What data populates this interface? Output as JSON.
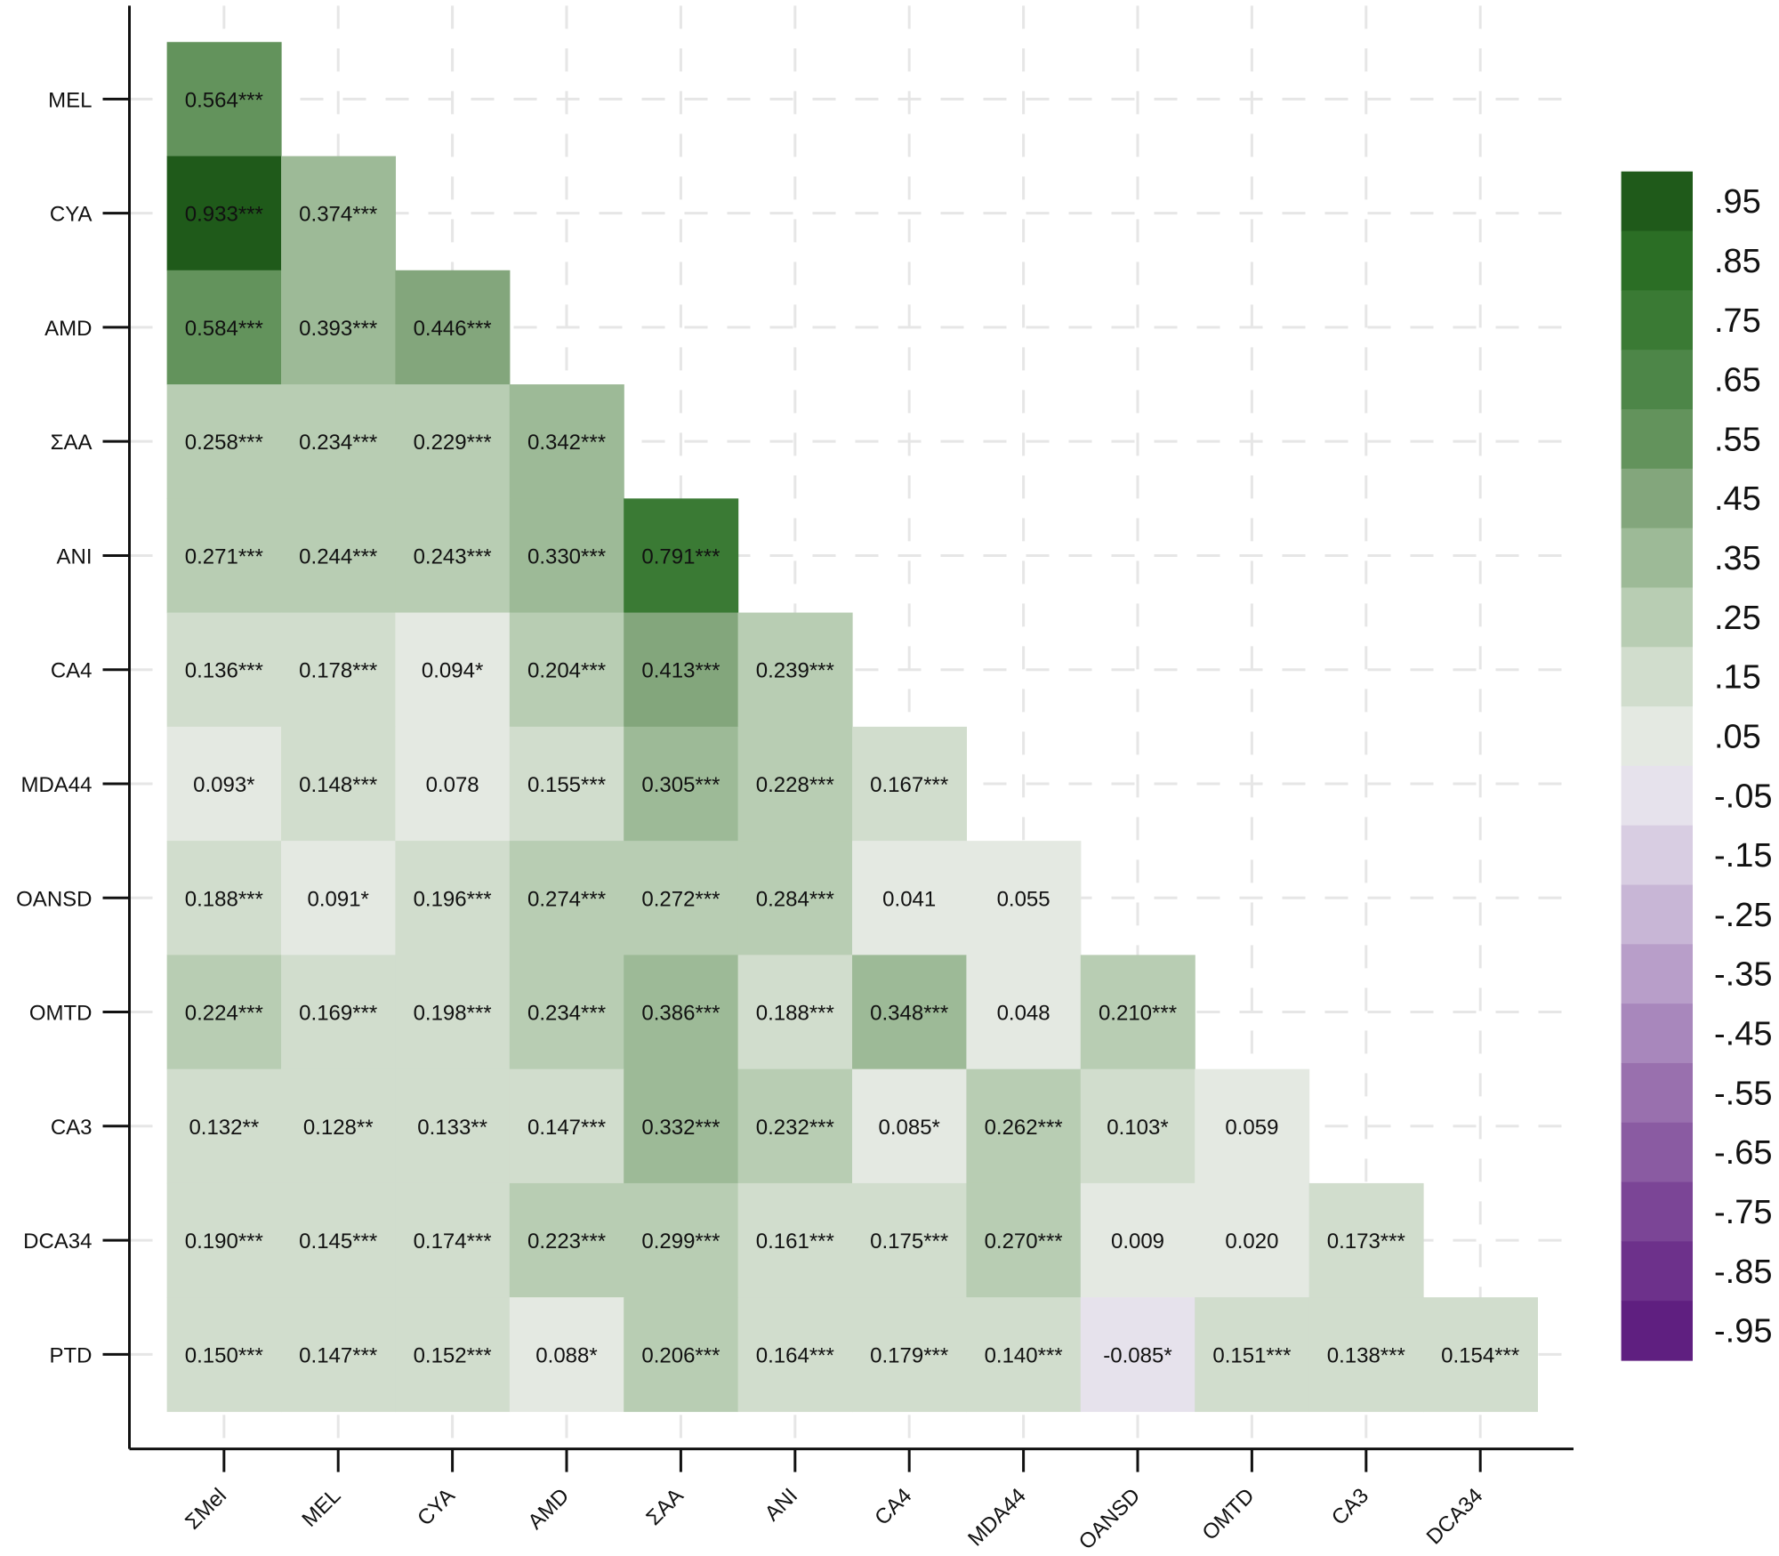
{
  "chart_data": {
    "type": "heatmap",
    "title": "",
    "xlabel": "",
    "ylabel": "",
    "x_categories": [
      "ΣMel",
      "MEL",
      "CYA",
      "AMD",
      "ΣAA",
      "ANI",
      "CA4",
      "MDA44",
      "OANSD",
      "OMTD",
      "CA3",
      "DCA34"
    ],
    "y_categories": [
      "MEL",
      "CYA",
      "AMD",
      "ΣAA",
      "ANI",
      "CA4",
      "MDA44",
      "OANSD",
      "OMTD",
      "CA3",
      "DCA34",
      "PTD"
    ],
    "values": [
      [
        0.564
      ],
      [
        0.933,
        0.374
      ],
      [
        0.584,
        0.393,
        0.446
      ],
      [
        0.258,
        0.234,
        0.229,
        0.342
      ],
      [
        0.271,
        0.244,
        0.243,
        0.33,
        0.791
      ],
      [
        0.136,
        0.178,
        0.094,
        0.204,
        0.413,
        0.239
      ],
      [
        0.093,
        0.148,
        0.078,
        0.155,
        0.305,
        0.228,
        0.167
      ],
      [
        0.188,
        0.091,
        0.196,
        0.274,
        0.272,
        0.284,
        0.041,
        0.055
      ],
      [
        0.224,
        0.169,
        0.198,
        0.234,
        0.386,
        0.188,
        0.348,
        0.048,
        0.21
      ],
      [
        0.132,
        0.128,
        0.133,
        0.147,
        0.332,
        0.232,
        0.085,
        0.262,
        0.103,
        0.059
      ],
      [
        0.19,
        0.145,
        0.174,
        0.223,
        0.299,
        0.161,
        0.175,
        0.27,
        0.009,
        0.02,
        0.173
      ],
      [
        0.15,
        0.147,
        0.152,
        0.088,
        0.206,
        0.164,
        0.179,
        0.14,
        -0.085,
        0.151,
        0.138,
        0.154
      ]
    ],
    "labels": [
      [
        "0.564***"
      ],
      [
        "0.933***",
        "0.374***"
      ],
      [
        "0.584***",
        "0.393***",
        "0.446***"
      ],
      [
        "0.258***",
        "0.234***",
        "0.229***",
        "0.342***"
      ],
      [
        "0.271***",
        "0.244***",
        "0.243***",
        "0.330***",
        "0.791***"
      ],
      [
        "0.136***",
        "0.178***",
        "0.094*",
        "0.204***",
        "0.413***",
        "0.239***"
      ],
      [
        "0.093*",
        "0.148***",
        "0.078",
        "0.155***",
        "0.305***",
        "0.228***",
        "0.167***"
      ],
      [
        "0.188***",
        "0.091*",
        "0.196***",
        "0.274***",
        "0.272***",
        "0.284***",
        "0.041",
        "0.055"
      ],
      [
        "0.224***",
        "0.169***",
        "0.198***",
        "0.234***",
        "0.386***",
        "0.188***",
        "0.348***",
        "0.048",
        "0.210***"
      ],
      [
        "0.132**",
        "0.128**",
        "0.133**",
        "0.147***",
        "0.332***",
        "0.232***",
        "0.085*",
        "0.262***",
        "0.103*",
        "0.059"
      ],
      [
        "0.190***",
        "0.145***",
        "0.174***",
        "0.223***",
        "0.299***",
        "0.161***",
        "0.175***",
        "0.270***",
        "0.009",
        "0.020",
        "0.173***"
      ],
      [
        "0.150***",
        "0.147***",
        "0.152***",
        "0.088*",
        "0.206***",
        "0.164***",
        "0.179***",
        "0.140***",
        "-0.085*",
        "0.151***",
        "0.138***",
        "0.154***"
      ]
    ],
    "colorbar": {
      "range": [
        -1,
        1
      ],
      "labels": [
        ".95",
        ".85",
        ".75",
        ".65",
        ".55",
        ".45",
        ".35",
        ".25",
        ".15",
        ".05",
        "-.05",
        "-.15",
        "-.25",
        "-.35",
        "-.45",
        "-.55",
        "-.65",
        "-.75",
        "-.85",
        "-.95"
      ],
      "bins": [
        {
          "label": ".95",
          "color": "#1f5a1a"
        },
        {
          "label": ".85",
          "color": "#2b6e25"
        },
        {
          "label": ".75",
          "color": "#3a7a34"
        },
        {
          "label": ".65",
          "color": "#4d8648"
        },
        {
          "label": ".55",
          "color": "#63935c"
        },
        {
          "label": ".45",
          "color": "#83a67c"
        },
        {
          "label": ".35",
          "color": "#9dba97"
        },
        {
          "label": ".25",
          "color": "#b8cdb3"
        },
        {
          "label": ".15",
          "color": "#d1ddcd"
        },
        {
          "label": ".05",
          "color": "#e4e9e2"
        },
        {
          "label": "-.05",
          "color": "#e6e2ec"
        },
        {
          "label": "-.15",
          "color": "#d8cde2"
        },
        {
          "label": "-.25",
          "color": "#c8b6d6"
        },
        {
          "label": "-.35",
          "color": "#b89ec9"
        },
        {
          "label": "-.45",
          "color": "#a887bc"
        },
        {
          "label": "-.55",
          "color": "#9970ae"
        },
        {
          "label": "-.65",
          "color": "#8a5ba2"
        },
        {
          "label": "-.75",
          "color": "#7b4596"
        },
        {
          "label": "-.85",
          "color": "#6d318b"
        },
        {
          "label": "-.95",
          "color": "#5f1f80"
        }
      ]
    },
    "grid": true,
    "legend": "right"
  }
}
